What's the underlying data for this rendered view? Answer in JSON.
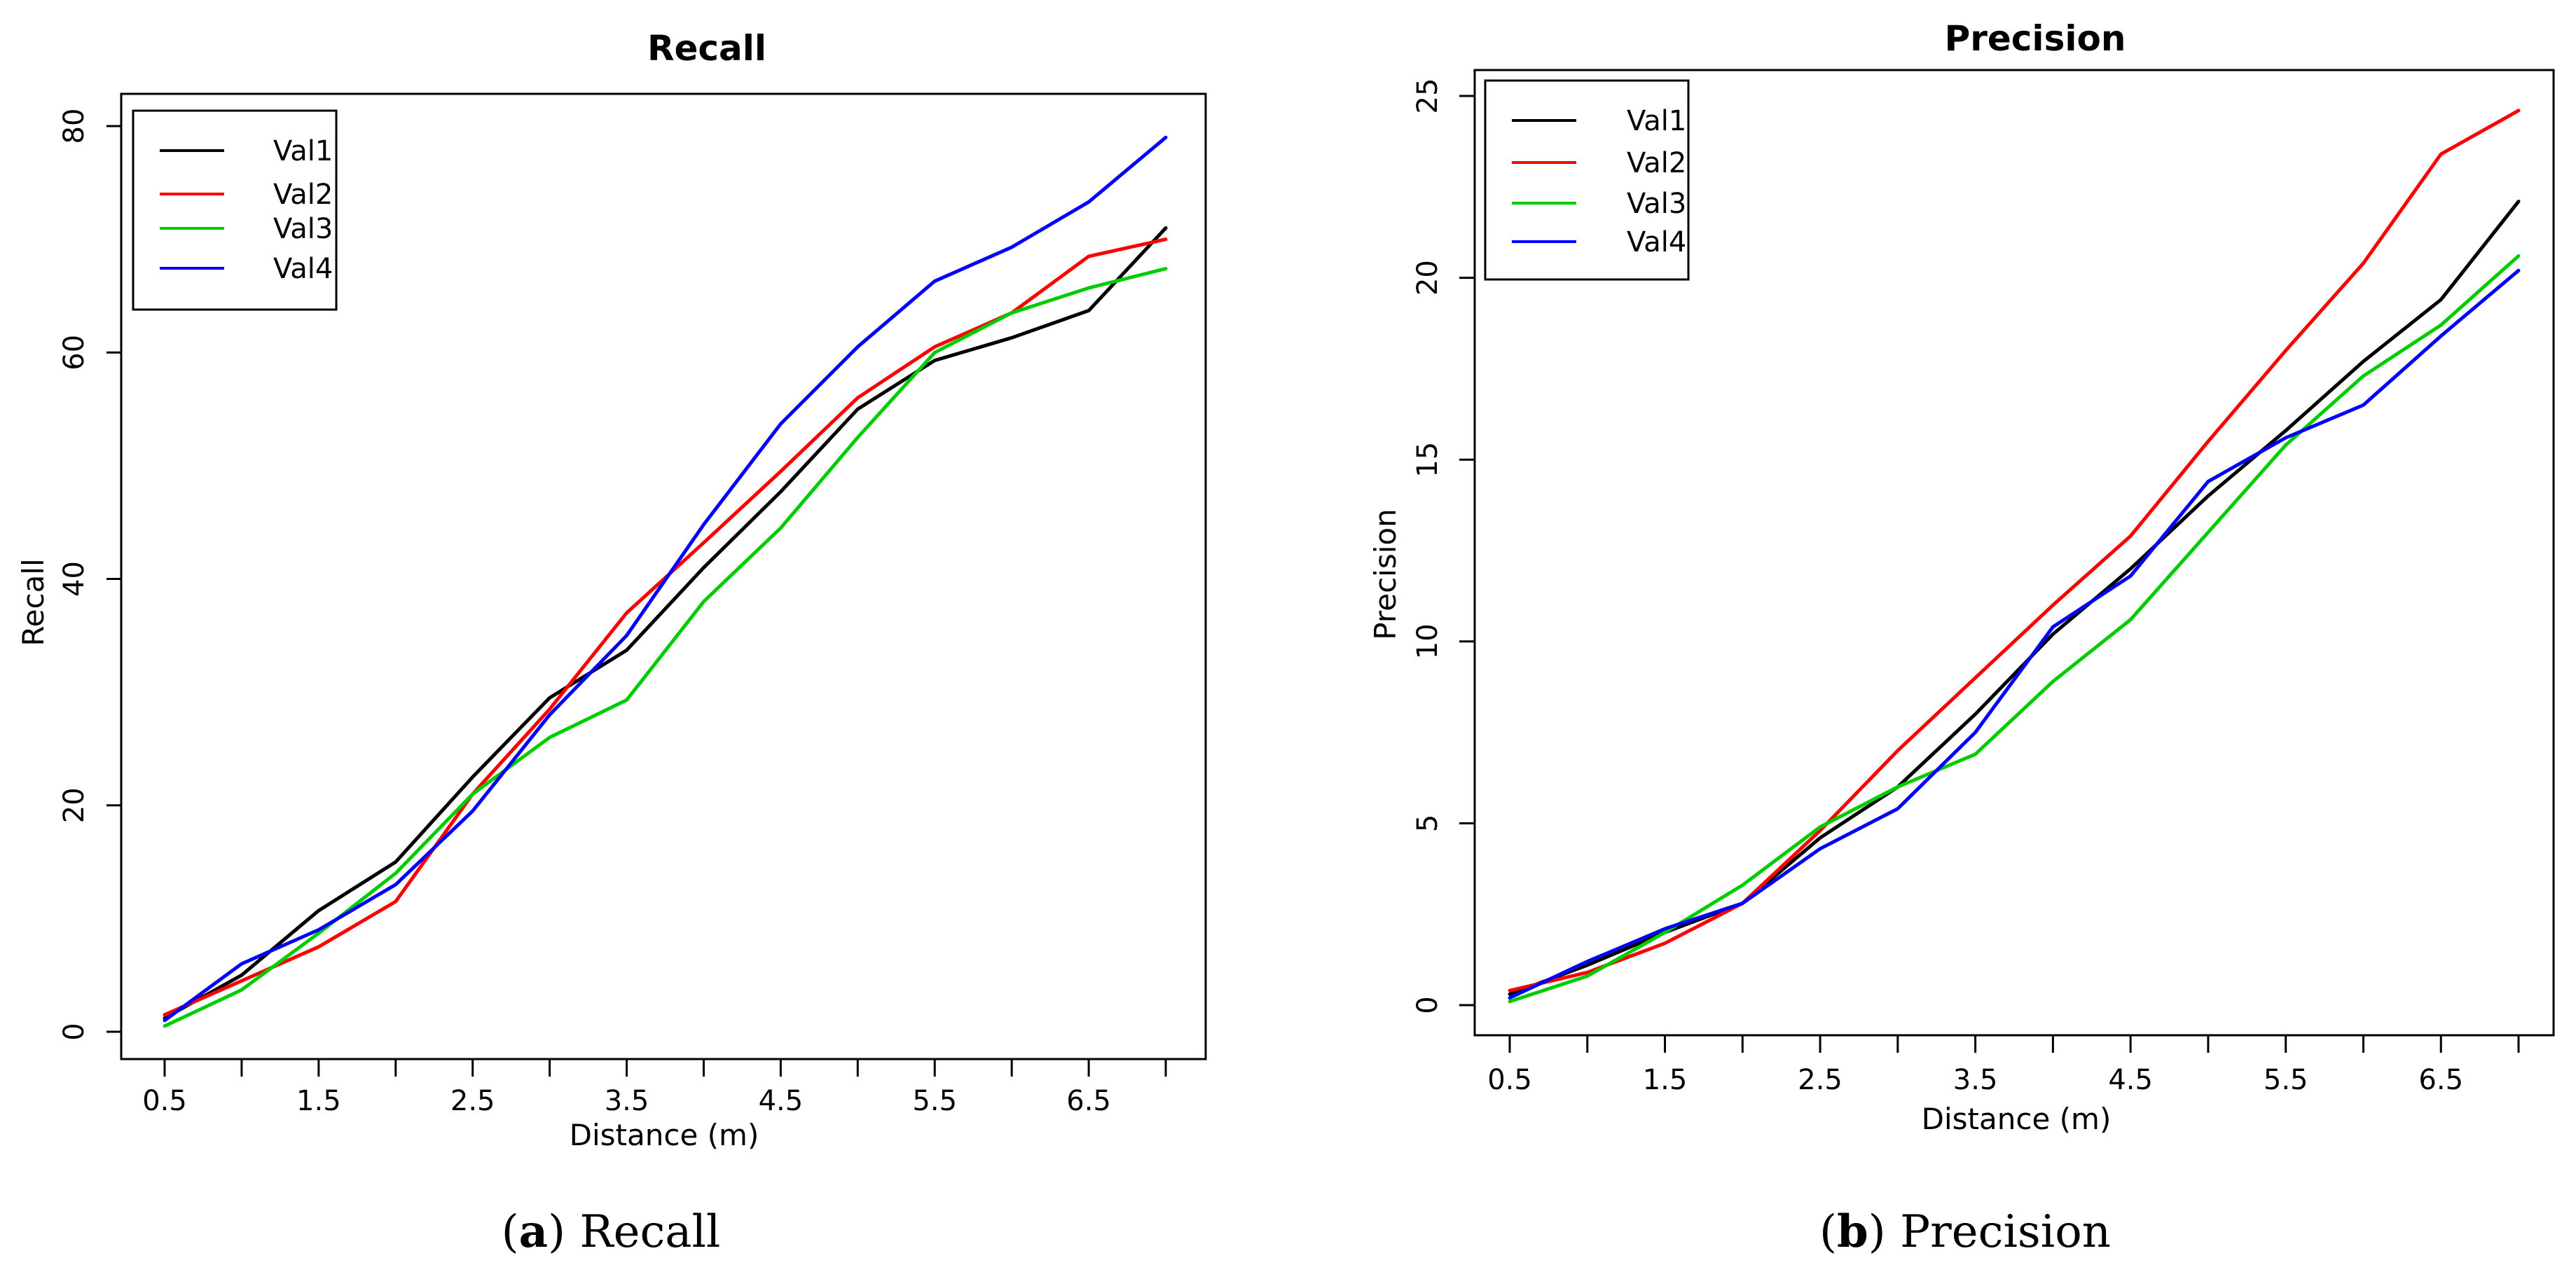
{
  "chart_data": [
    {
      "type": "line",
      "title": "Recall",
      "xlabel": "Distance (m)",
      "ylabel": "Recall",
      "xlim": [
        0.5,
        7.0
      ],
      "ylim": [
        0,
        80
      ],
      "x": [
        0.5,
        1.0,
        1.5,
        2.0,
        2.5,
        3.0,
        3.5,
        4.0,
        4.5,
        5.0,
        5.5,
        6.0,
        6.5,
        7.0
      ],
      "x_tick_labels": [
        "0.5",
        "1.5",
        "2.5",
        "3.5",
        "4.5",
        "5.5",
        "6.5"
      ],
      "y_tick_labels": [
        "0",
        "20",
        "40",
        "60",
        "80"
      ],
      "legend_position": "top-left",
      "series": [
        {
          "name": "Val1",
          "color": "#000000",
          "values": [
            1.2,
            5.0,
            10.7,
            15.0,
            22.5,
            29.5,
            33.7,
            41.0,
            47.7,
            55.0,
            59.3,
            61.3,
            63.7,
            71.0
          ]
        },
        {
          "name": "Val2",
          "color": "#ff0000",
          "values": [
            1.5,
            4.5,
            7.5,
            11.5,
            21.0,
            28.5,
            37.0,
            43.2,
            49.5,
            56.0,
            60.5,
            63.5,
            68.5,
            70.0
          ]
        },
        {
          "name": "Val3",
          "color": "#00cc00",
          "values": [
            0.5,
            3.7,
            8.7,
            14.0,
            21.0,
            26.0,
            29.3,
            38.0,
            44.5,
            52.5,
            60.0,
            63.5,
            65.7,
            67.4
          ]
        },
        {
          "name": "Val4",
          "color": "#0000ff",
          "values": [
            1.0,
            6.0,
            9.0,
            13.0,
            19.5,
            28.0,
            35.0,
            44.8,
            53.7,
            60.5,
            66.3,
            69.3,
            73.3,
            79.0
          ]
        }
      ],
      "caption_letter": "a",
      "caption_text": "Recall"
    },
    {
      "type": "line",
      "title": "Precision",
      "xlabel": "Distance (m)",
      "ylabel": "Precision",
      "xlim": [
        0.5,
        7.0
      ],
      "ylim": [
        0,
        25
      ],
      "x": [
        0.5,
        1.0,
        1.5,
        2.0,
        2.5,
        3.0,
        3.5,
        4.0,
        4.5,
        5.0,
        5.5,
        6.0,
        6.5,
        7.0
      ],
      "x_tick_labels": [
        "0.5",
        "1.5",
        "2.5",
        "3.5",
        "4.5",
        "5.5",
        "6.5"
      ],
      "y_tick_labels": [
        "0",
        "5",
        "10",
        "15",
        "20",
        "25"
      ],
      "legend_position": "top-left",
      "series": [
        {
          "name": "Val1",
          "color": "#000000",
          "values": [
            0.3,
            1.1,
            2.0,
            2.8,
            4.6,
            6.0,
            8.0,
            10.2,
            12.0,
            14.0,
            15.8,
            17.7,
            19.4,
            22.1
          ]
        },
        {
          "name": "Val2",
          "color": "#ff0000",
          "values": [
            0.4,
            0.9,
            1.7,
            2.8,
            4.8,
            7.0,
            9.0,
            11.0,
            12.9,
            15.5,
            18.0,
            20.4,
            23.4,
            24.6
          ]
        },
        {
          "name": "Val3",
          "color": "#00cc00",
          "values": [
            0.1,
            0.8,
            2.0,
            3.3,
            4.9,
            6.0,
            6.9,
            8.9,
            10.6,
            13.0,
            15.4,
            17.3,
            18.7,
            20.6
          ]
        },
        {
          "name": "Val4",
          "color": "#0000ff",
          "values": [
            0.2,
            1.2,
            2.1,
            2.8,
            4.3,
            5.4,
            7.5,
            10.4,
            11.8,
            14.4,
            15.6,
            16.5,
            18.4,
            20.2
          ]
        }
      ],
      "caption_letter": "b",
      "caption_text": "Precision"
    }
  ]
}
